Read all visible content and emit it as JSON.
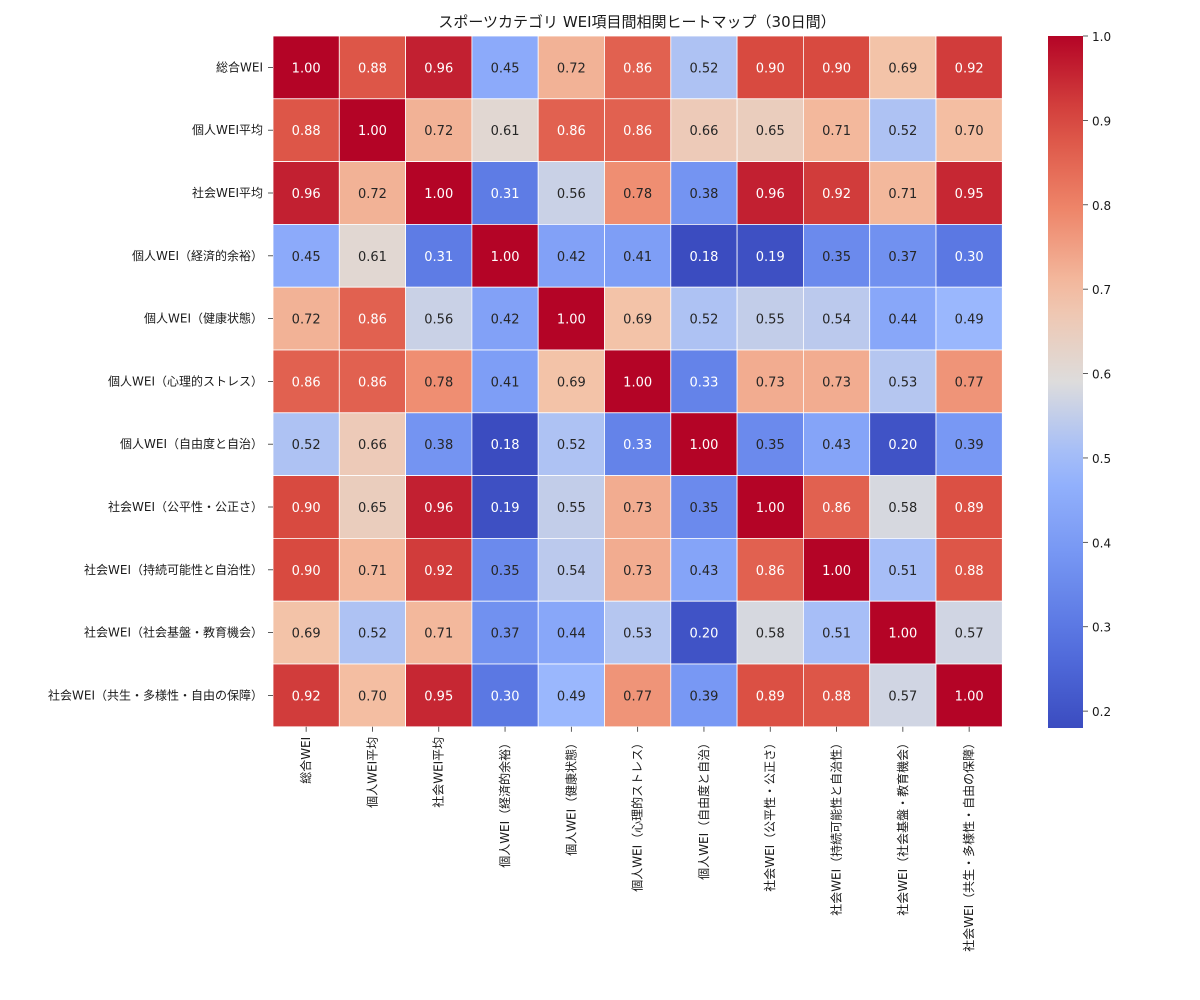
{
  "chart_data": {
    "type": "heatmap",
    "title": "スポーツカテゴリ WEI項目間相関ヒートマップ（30日間）",
    "row_labels": [
      "総合WEI",
      "個人WEI平均",
      "社会WEI平均",
      "個人WEI（経済的余裕）",
      "個人WEI（健康状態）",
      "個人WEI（心理的ストレス）",
      "個人WEI（自由度と自治）",
      "社会WEI（公平性・公正さ）",
      "社会WEI（持続可能性と自治性）",
      "社会WEI（社会基盤・教育機会）",
      "社会WEI（共生・多様性・自由の保障）"
    ],
    "col_labels": [
      "総合WEI",
      "個人WEI平均",
      "社会WEI平均",
      "個人WEI（経済的余裕）",
      "個人WEI（健康状態）",
      "個人WEI（心理的ストレス）",
      "個人WEI（自由度と自治）",
      "社会WEI（公平性・公正さ）",
      "社会WEI（持続可能性と自治性）",
      "社会WEI（社会基盤・教育機会）",
      "社会WEI（共生・多様性・自由の保障）"
    ],
    "values": [
      [
        1.0,
        0.88,
        0.96,
        0.45,
        0.72,
        0.86,
        0.52,
        0.9,
        0.9,
        0.69,
        0.92
      ],
      [
        0.88,
        1.0,
        0.72,
        0.61,
        0.86,
        0.86,
        0.66,
        0.65,
        0.71,
        0.52,
        0.7
      ],
      [
        0.96,
        0.72,
        1.0,
        0.31,
        0.56,
        0.78,
        0.38,
        0.96,
        0.92,
        0.71,
        0.95
      ],
      [
        0.45,
        0.61,
        0.31,
        1.0,
        0.42,
        0.41,
        0.18,
        0.19,
        0.35,
        0.37,
        0.3
      ],
      [
        0.72,
        0.86,
        0.56,
        0.42,
        1.0,
        0.69,
        0.52,
        0.55,
        0.54,
        0.44,
        0.49
      ],
      [
        0.86,
        0.86,
        0.78,
        0.41,
        0.69,
        1.0,
        0.33,
        0.73,
        0.73,
        0.53,
        0.77
      ],
      [
        0.52,
        0.66,
        0.38,
        0.18,
        0.52,
        0.33,
        1.0,
        0.35,
        0.43,
        0.2,
        0.39
      ],
      [
        0.9,
        0.65,
        0.96,
        0.19,
        0.55,
        0.73,
        0.35,
        1.0,
        0.86,
        0.58,
        0.89
      ],
      [
        0.9,
        0.71,
        0.92,
        0.35,
        0.54,
        0.73,
        0.43,
        0.86,
        1.0,
        0.51,
        0.88
      ],
      [
        0.69,
        0.52,
        0.71,
        0.37,
        0.44,
        0.53,
        0.2,
        0.58,
        0.51,
        1.0,
        0.57
      ],
      [
        0.92,
        0.7,
        0.95,
        0.3,
        0.49,
        0.77,
        0.39,
        0.89,
        0.88,
        0.57,
        1.0
      ]
    ],
    "colormap": "coolwarm",
    "vmin": 0.18,
    "vmax": 1.0,
    "colorbar_ticks": [
      0.2,
      0.3,
      0.4,
      0.5,
      0.6,
      0.7,
      0.8,
      0.9,
      1.0
    ],
    "annotations_format": "0.00",
    "grid_line_color": "#ffffff",
    "legend_position": "right"
  }
}
